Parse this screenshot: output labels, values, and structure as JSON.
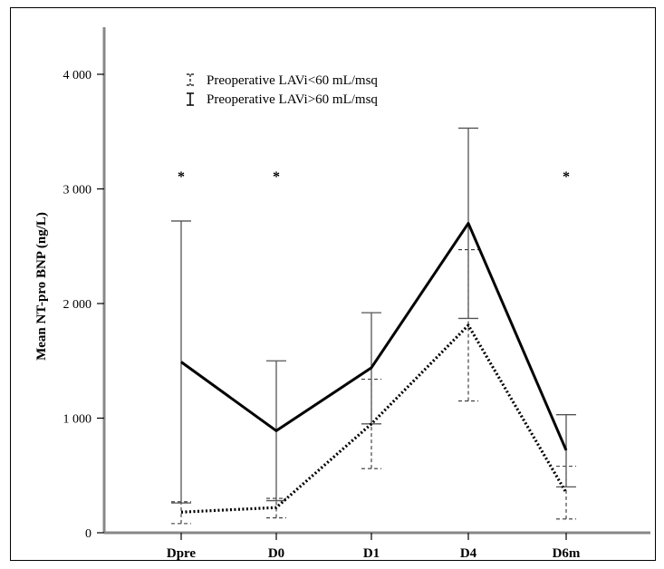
{
  "chart_data": {
    "type": "line",
    "ylabel": "Mean NT-pro BNP (ng/L)",
    "xlabel": "",
    "categories": [
      "Dpre",
      "D0",
      "D1",
      "D4",
      "D6m"
    ],
    "ylim": [
      0,
      4400
    ],
    "yticks": [
      0,
      1000,
      2000,
      3000,
      4000
    ],
    "ytick_labels": [
      "0",
      "1 000",
      "2 000",
      "3 000",
      "4 000"
    ],
    "legend_position": "top-left",
    "grid": false,
    "series": [
      {
        "name": "Preoperative LAVi<60 mL/msq",
        "style": "dotted",
        "error_style": "dashed",
        "values": [
          180,
          220,
          950,
          1810,
          350
        ],
        "err_low": [
          80,
          130,
          560,
          1150,
          120
        ],
        "err_high": [
          270,
          300,
          1340,
          2470,
          580
        ]
      },
      {
        "name": "Preoperative LAVi>60 mL/msq",
        "style": "solid",
        "error_style": "solid",
        "values": [
          1490,
          890,
          1440,
          2700,
          720
        ],
        "err_low": [
          260,
          280,
          950,
          1870,
          400
        ],
        "err_high": [
          2720,
          1500,
          1920,
          3530,
          1030
        ]
      }
    ],
    "significance_markers": [
      {
        "category": "Dpre",
        "label": "*"
      },
      {
        "category": "D0",
        "label": "*"
      },
      {
        "category": "D6m",
        "label": "*"
      }
    ]
  }
}
